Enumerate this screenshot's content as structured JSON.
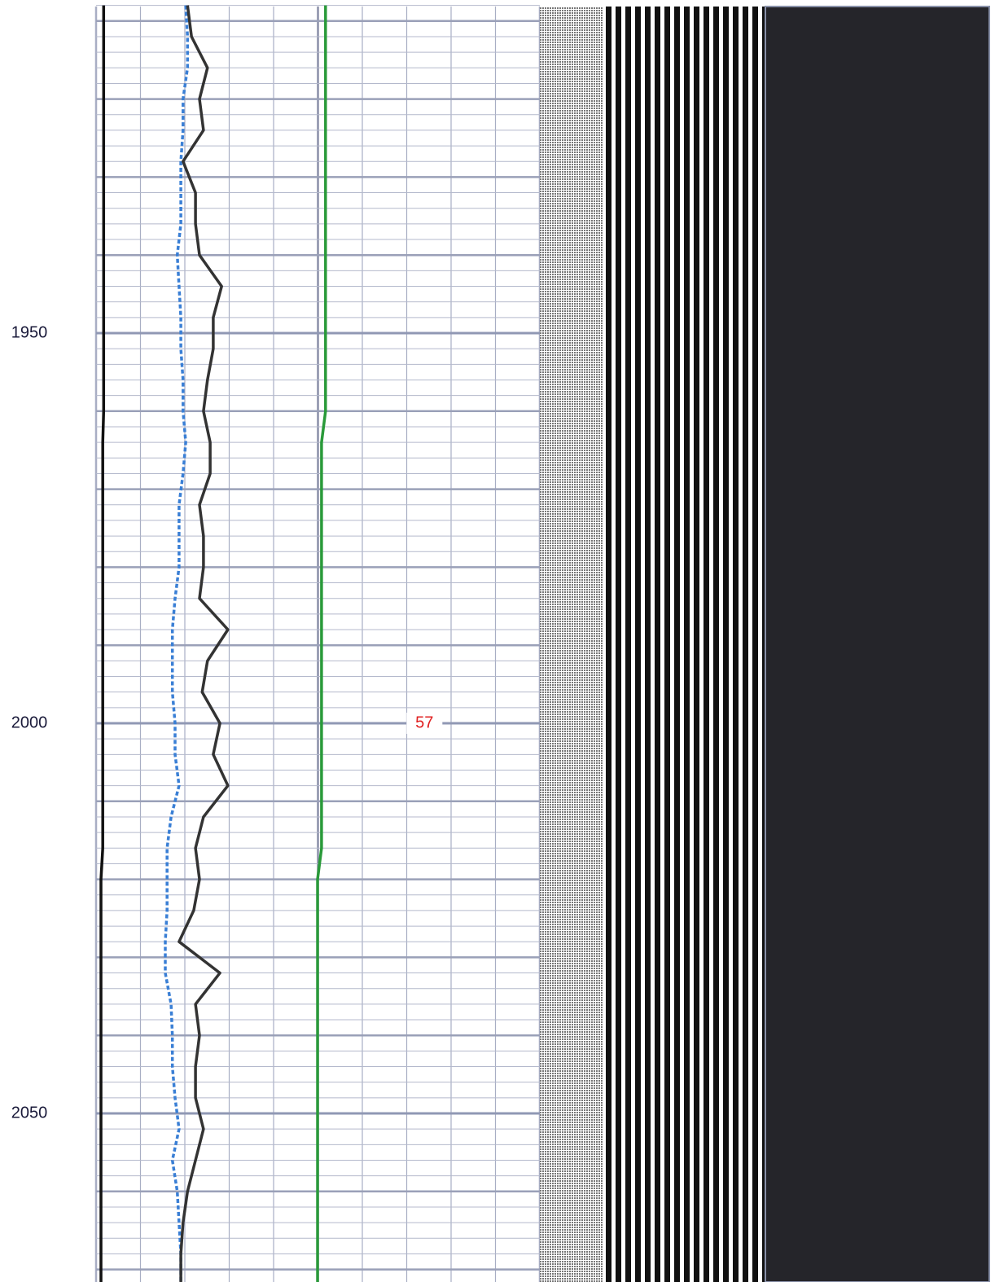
{
  "chart_data": {
    "type": "well-log",
    "orientation": "vertical",
    "x": [
      1908,
      1912,
      1916,
      1920,
      1924,
      1928,
      1932,
      1936,
      1940,
      1944,
      1948,
      1952,
      1956,
      1960,
      1964,
      1968,
      1972,
      1976,
      1980,
      1984,
      1988,
      1992,
      1996,
      2000,
      2004,
      2008,
      2012,
      2016,
      2020,
      2024,
      2028,
      2032,
      2036,
      2040,
      2044,
      2048,
      2052,
      2056,
      2060,
      2064,
      2068,
      2072
    ],
    "xlim": [
      1908,
      2072
    ],
    "xticks": [
      1950,
      2000,
      2050
    ],
    "ylim": [
      0,
      100
    ],
    "grid": true,
    "minor_grid_step": 2,
    "major_grid_step": 10,
    "series": [
      {
        "color": "#111111",
        "style": "solid",
        "values": [
          1.7,
          1.7,
          1.7,
          1.7,
          1.7,
          1.7,
          1.7,
          1.7,
          1.7,
          1.7,
          1.7,
          1.7,
          1.7,
          1.7,
          1.5,
          1.5,
          1.5,
          1.5,
          1.5,
          1.5,
          1.5,
          1.5,
          1.5,
          1.5,
          1.5,
          1.5,
          1.5,
          1.5,
          1.1,
          1.1,
          1.1,
          1.1,
          1.1,
          1.1,
          1.1,
          1.1,
          1.1,
          1.1,
          1.1,
          1.1,
          1.1,
          1.1
        ]
      },
      {
        "color": "#3a7fd5",
        "style": "dashed",
        "values": [
          20.2,
          20.6,
          20.6,
          19.6,
          19.6,
          19.1,
          19.1,
          19.1,
          18.3,
          18.7,
          19.1,
          19.1,
          19.6,
          19.6,
          20.2,
          19.6,
          18.7,
          18.7,
          18.7,
          17.8,
          17.2,
          17.2,
          17.2,
          17.8,
          17.8,
          18.7,
          16.9,
          16.0,
          16.0,
          16.0,
          15.6,
          15.6,
          16.9,
          17.2,
          17.2,
          17.8,
          18.7,
          17.2,
          18.3,
          18.7,
          19.1,
          19.1
        ]
      },
      {
        "color": "#333333",
        "style": "solid",
        "values": [
          20.6,
          21.5,
          25.1,
          23.3,
          24.2,
          19.6,
          22.4,
          22.4,
          23.3,
          28.3,
          26.4,
          26.4,
          25.1,
          24.2,
          25.7,
          25.7,
          23.3,
          24.2,
          24.2,
          23.3,
          29.7,
          25.1,
          23.9,
          27.9,
          26.4,
          29.7,
          24.2,
          22.4,
          23.3,
          22.0,
          18.7,
          27.9,
          22.4,
          23.3,
          22.4,
          22.4,
          24.2,
          22.4,
          20.6,
          19.6,
          19.1,
          19.1
        ]
      },
      {
        "color": "#2a9a3a",
        "style": "solid",
        "values": [
          51.7,
          51.7,
          51.7,
          51.7,
          51.7,
          51.7,
          51.7,
          51.7,
          51.7,
          51.7,
          51.7,
          51.7,
          51.7,
          51.7,
          50.8,
          50.8,
          50.8,
          50.8,
          50.8,
          50.8,
          50.8,
          50.8,
          50.8,
          50.8,
          50.8,
          50.8,
          50.8,
          50.8,
          49.9,
          49.9,
          49.9,
          49.9,
          49.9,
          49.9,
          49.9,
          49.9,
          49.9,
          49.9,
          49.9,
          49.9,
          49.9,
          49.9
        ]
      }
    ],
    "annotations": [
      {
        "text": "57",
        "x": 2000,
        "y": 74,
        "color": "#e02020"
      }
    ]
  }
}
